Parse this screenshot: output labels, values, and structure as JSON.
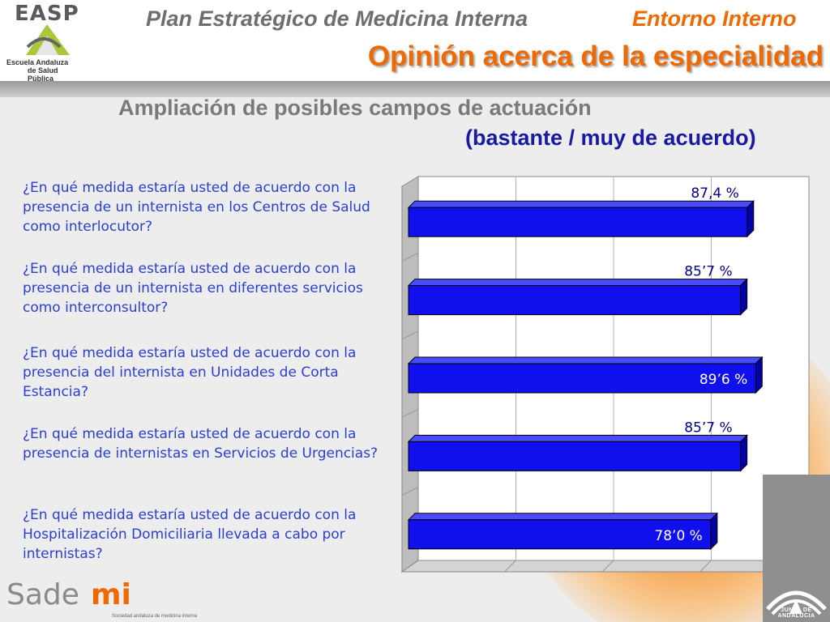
{
  "header": {
    "title": "Plan Estratégico de Medicina Interna",
    "section": "Entorno Interno",
    "subtitle": "Opinión acerca de la especialidad"
  },
  "logos": {
    "easp_letters": "EASP",
    "easp_org_line1": "Escuela Andaluza",
    "easp_org_line2": "de Salud Pública",
    "sademi_prefix": "Sade",
    "sademi_suffix": "mi",
    "sademi_tagline": "Sociedad andaluza de medicina interna",
    "junta_name": "JUNTA DE ANDALUCIA"
  },
  "colors": {
    "accent_orange": "#ee6a00",
    "bar_blue": "#1010ee",
    "question_blue": "#2a3fd0",
    "subtitle_navy": "#1a1aa0"
  },
  "chart_data": {
    "type": "bar",
    "orientation": "horizontal",
    "title": "Ampliación de posibles campos de actuación",
    "subtitle": "(bastante / muy de acuerdo)",
    "categories": [
      "¿En qué medida estaría usted de acuerdo con la presencia de un internista en los Centros de Salud como interlocutor?",
      "¿En qué medida estaría usted de acuerdo con la presencia de un internista en diferentes servicios como interconsultor?",
      "¿En qué medida estaría usted de acuerdo con la presencia del internista en Unidades de Corta Estancia?",
      "¿En qué medida estaría usted de acuerdo con la presencia de internistas en Servicios de Urgencias?",
      "¿En qué medida estaría usted de acuerdo con la Hospitalización Domiciliaria llevada a cabo por internistas?"
    ],
    "values": [
      87.4,
      85.7,
      89.6,
      85.7,
      78.0
    ],
    "data_labels": [
      "87,4 %",
      "85’7 %",
      "89’6 %",
      "85’7 %",
      "78’0 %"
    ],
    "xlim": [
      0,
      100
    ],
    "grid": true
  }
}
